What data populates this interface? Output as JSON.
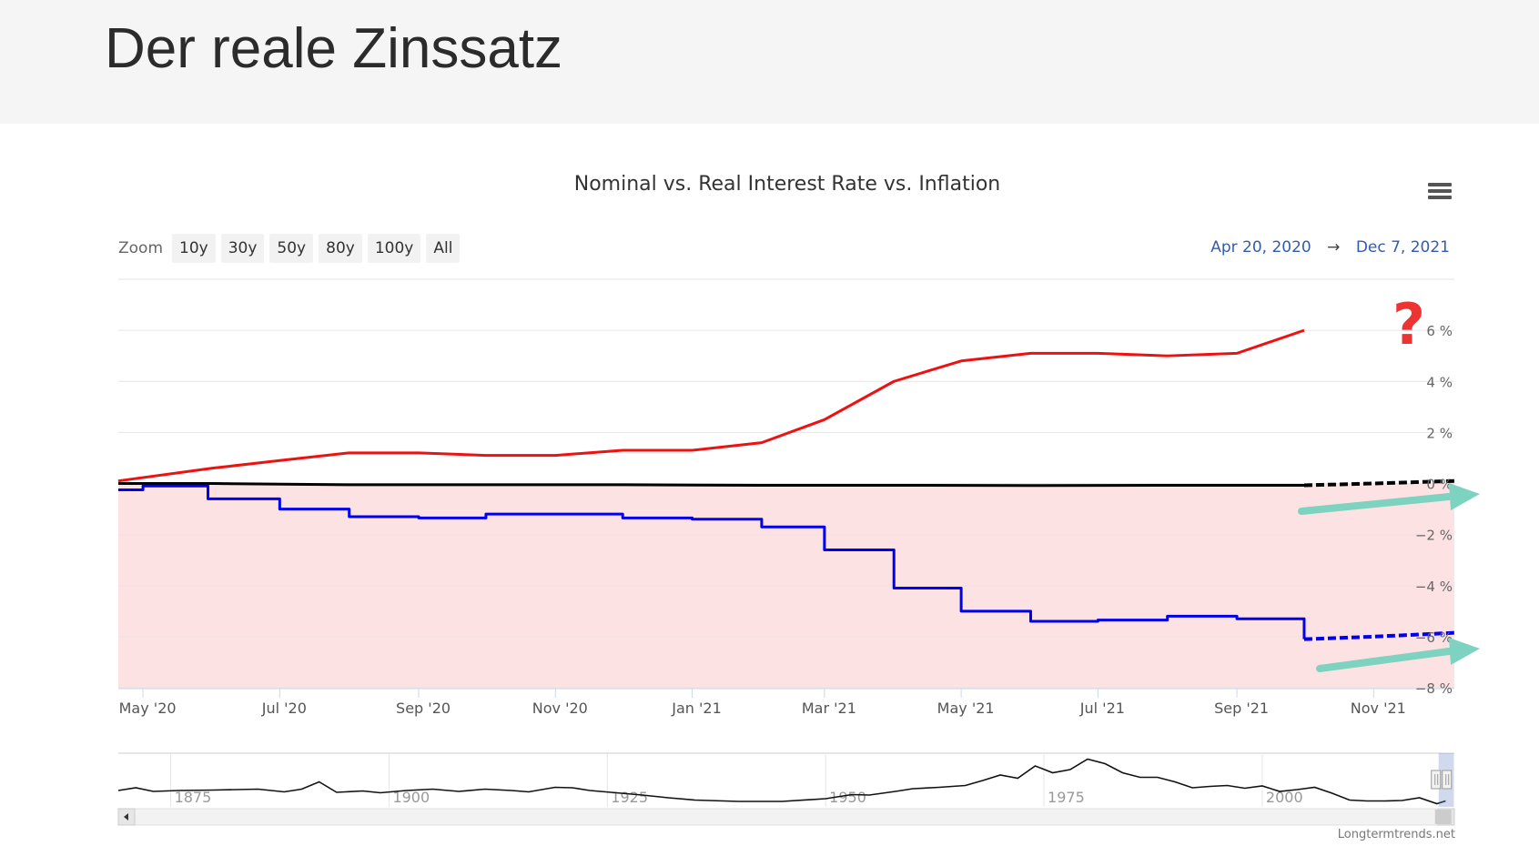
{
  "slide": {
    "title": "Der reale Zinssatz"
  },
  "toolbar": {
    "zoom_label": "Zoom",
    "zoom_buttons": [
      "10y",
      "30y",
      "50y",
      "80y",
      "100y",
      "All"
    ],
    "range_from": "Apr 20, 2020",
    "range_arrow": "→",
    "range_to": "Dec 7, 2021",
    "menu_icon": "hamburger-menu-icon"
  },
  "annotation": {
    "question_mark": "?"
  },
  "credit": "Longtermtrends.net",
  "chart_data": {
    "type": "line",
    "title": "Nominal vs. Real Interest Rate vs. Inflation",
    "x_range": [
      "2020-04-20",
      "2021-12-07"
    ],
    "y_range": [
      -8,
      8
    ],
    "x_ticks": [
      {
        "date": "2020-05-01",
        "label": "May '20"
      },
      {
        "date": "2020-07-01",
        "label": "Jul '20"
      },
      {
        "date": "2020-09-01",
        "label": "Sep '20"
      },
      {
        "date": "2020-11-01",
        "label": "Nov '20"
      },
      {
        "date": "2021-01-01",
        "label": "Jan '21"
      },
      {
        "date": "2021-03-01",
        "label": "Mar '21"
      },
      {
        "date": "2021-05-01",
        "label": "May '21"
      },
      {
        "date": "2021-07-01",
        "label": "Jul '21"
      },
      {
        "date": "2021-09-01",
        "label": "Sep '21"
      },
      {
        "date": "2021-11-01",
        "label": "Nov '21"
      }
    ],
    "y_ticks": [
      {
        "value": 6,
        "label": "6 %"
      },
      {
        "value": 4,
        "label": "4 %"
      },
      {
        "value": 2,
        "label": "2 %"
      },
      {
        "value": 0,
        "label": "0 %"
      },
      {
        "value": -2,
        "label": "−2 %"
      },
      {
        "value": -4,
        "label": "−4 %"
      },
      {
        "value": -6,
        "label": "−6 %"
      },
      {
        "value": -8,
        "label": "−8 %"
      }
    ],
    "negative_zone_fill": "#fde2e4",
    "series": [
      {
        "color": "#ee1111",
        "points": [
          [
            "2020-04-20",
            0.1
          ],
          [
            "2020-06-01",
            0.6
          ],
          [
            "2020-07-01",
            0.9
          ],
          [
            "2020-08-01",
            1.2
          ],
          [
            "2020-09-01",
            1.2
          ],
          [
            "2020-10-01",
            1.1
          ],
          [
            "2020-11-01",
            1.1
          ],
          [
            "2020-12-01",
            1.3
          ],
          [
            "2021-01-01",
            1.3
          ],
          [
            "2021-02-01",
            1.6
          ],
          [
            "2021-03-01",
            2.5
          ],
          [
            "2021-04-01",
            4.0
          ],
          [
            "2021-05-01",
            4.8
          ],
          [
            "2021-06-01",
            5.1
          ],
          [
            "2021-07-01",
            5.1
          ],
          [
            "2021-08-01",
            5.0
          ],
          [
            "2021-09-01",
            5.1
          ],
          [
            "2021-10-01",
            6.0
          ]
        ]
      },
      {
        "color": "#000000",
        "points": [
          [
            "2020-04-20",
            0.0
          ],
          [
            "2020-06-01",
            0.0
          ],
          [
            "2020-08-01",
            -0.05
          ],
          [
            "2020-10-01",
            -0.05
          ],
          [
            "2020-12-01",
            -0.05
          ],
          [
            "2021-02-01",
            -0.07
          ],
          [
            "2021-04-01",
            -0.07
          ],
          [
            "2021-06-01",
            -0.08
          ],
          [
            "2021-08-01",
            -0.07
          ],
          [
            "2021-10-01",
            -0.07
          ]
        ],
        "dashed_points": [
          [
            "2021-10-01",
            -0.07
          ],
          [
            "2021-11-01",
            0.0
          ],
          [
            "2021-12-07",
            0.1
          ]
        ]
      },
      {
        "color": "#0000ee",
        "step": true,
        "points": [
          [
            "2020-04-20",
            -0.25
          ],
          [
            "2020-05-01",
            -0.1
          ],
          [
            "2020-05-30",
            -0.6
          ],
          [
            "2020-07-01",
            -1.0
          ],
          [
            "2020-08-01",
            -1.3
          ],
          [
            "2020-09-01",
            -1.35
          ],
          [
            "2020-10-01",
            -1.2
          ],
          [
            "2020-11-01",
            -1.2
          ],
          [
            "2020-12-01",
            -1.35
          ],
          [
            "2021-01-01",
            -1.4
          ],
          [
            "2021-02-01",
            -1.7
          ],
          [
            "2021-03-01",
            -2.6
          ],
          [
            "2021-04-01",
            -4.1
          ],
          [
            "2021-05-01",
            -5.0
          ],
          [
            "2021-06-01",
            -5.4
          ],
          [
            "2021-07-01",
            -5.35
          ],
          [
            "2021-08-01",
            -5.2
          ],
          [
            "2021-09-01",
            -5.3
          ],
          [
            "2021-10-01",
            -6.1
          ]
        ],
        "dashed_points": [
          [
            "2021-10-01",
            -6.1
          ],
          [
            "2021-11-01",
            -6.0
          ],
          [
            "2021-12-07",
            -5.85
          ]
        ]
      }
    ],
    "navigator": {
      "year_labels": [
        "1875",
        "1900",
        "1925",
        "1950",
        "1975",
        "2000"
      ],
      "year_positions": [
        1875,
        1900,
        1925,
        1950,
        1975,
        2000
      ],
      "year_range": [
        1869,
        2022
      ],
      "shape_series": [
        [
          1869,
          3.6
        ],
        [
          1871,
          4.2
        ],
        [
          1873,
          3.4
        ],
        [
          1876,
          3.6
        ],
        [
          1880,
          3.7
        ],
        [
          1885,
          3.9
        ],
        [
          1888,
          3.3
        ],
        [
          1890,
          3.9
        ],
        [
          1892,
          5.5
        ],
        [
          1894,
          3.2
        ],
        [
          1897,
          3.5
        ],
        [
          1899,
          3.1
        ],
        [
          1902,
          3.6
        ],
        [
          1905,
          3.9
        ],
        [
          1908,
          3.4
        ],
        [
          1911,
          3.9
        ],
        [
          1914,
          3.6
        ],
        [
          1916,
          3.3
        ],
        [
          1919,
          4.3
        ],
        [
          1921,
          4.2
        ],
        [
          1923,
          3.6
        ],
        [
          1926,
          3.1
        ],
        [
          1929,
          2.6
        ],
        [
          1932,
          2.0
        ],
        [
          1935,
          1.5
        ],
        [
          1940,
          1.2
        ],
        [
          1945,
          1.2
        ],
        [
          1950,
          1.8
        ],
        [
          1953,
          2.7
        ],
        [
          1955,
          2.6
        ],
        [
          1958,
          3.4
        ],
        [
          1960,
          4.0
        ],
        [
          1963,
          4.3
        ],
        [
          1966,
          4.7
        ],
        [
          1968,
          5.8
        ],
        [
          1970,
          7.0
        ],
        [
          1972,
          6.3
        ],
        [
          1974,
          9.0
        ],
        [
          1976,
          7.5
        ],
        [
          1978,
          8.2
        ],
        [
          1980,
          10.5
        ],
        [
          1982,
          9.5
        ],
        [
          1984,
          7.5
        ],
        [
          1986,
          6.5
        ],
        [
          1988,
          6.5
        ],
        [
          1990,
          5.5
        ],
        [
          1992,
          4.2
        ],
        [
          1994,
          4.5
        ],
        [
          1996,
          4.7
        ],
        [
          1998,
          4.1
        ],
        [
          2000,
          4.6
        ],
        [
          2002,
          3.4
        ],
        [
          2004,
          3.8
        ],
        [
          2006,
          4.3
        ],
        [
          2008,
          3.0
        ],
        [
          2010,
          1.5
        ],
        [
          2012,
          1.3
        ],
        [
          2014,
          1.3
        ],
        [
          2016,
          1.4
        ],
        [
          2018,
          2.0
        ],
        [
          2020,
          0.7
        ],
        [
          2021,
          1.3
        ]
      ]
    }
  }
}
